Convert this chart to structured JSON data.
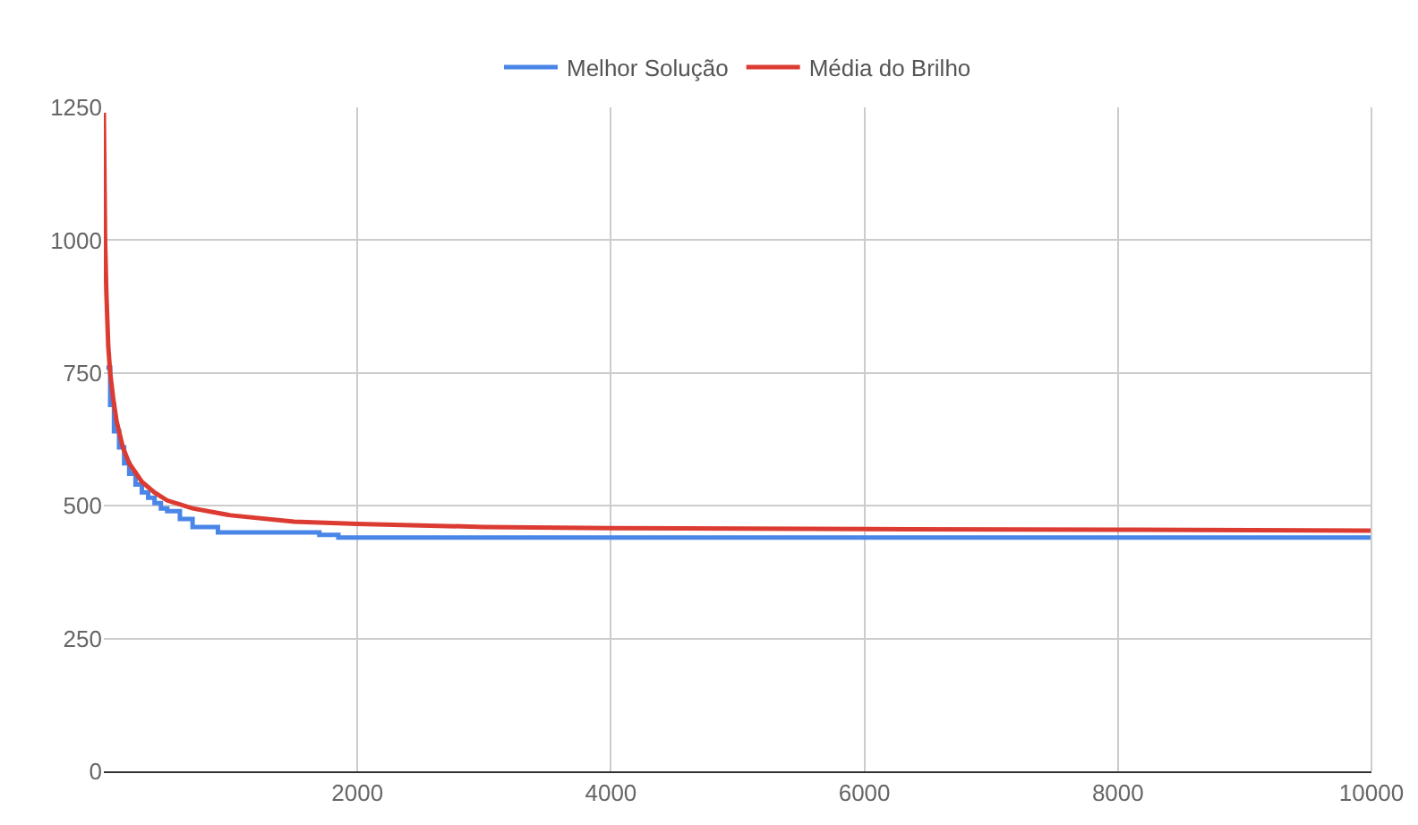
{
  "chart_data": {
    "type": "line",
    "xlim": [
      0,
      10000
    ],
    "xticks": [
      2000,
      4000,
      6000,
      8000,
      10000
    ],
    "ylim": [
      0,
      1250
    ],
    "yticks": [
      0,
      250,
      500,
      750,
      1000,
      1250
    ],
    "grid": true,
    "legend": "top",
    "series": [
      {
        "name": "Melhor Solução",
        "color": "#4a86e8",
        "type": "step",
        "x": [
          20,
          50,
          80,
          120,
          160,
          200,
          250,
          300,
          350,
          400,
          450,
          500,
          600,
          700,
          900,
          1700,
          1850,
          10000
        ],
        "values": [
          760,
          690,
          640,
          610,
          580,
          560,
          540,
          525,
          515,
          505,
          495,
          490,
          475,
          460,
          450,
          445,
          440,
          440
        ]
      },
      {
        "name": "Média do Brilho",
        "color": "#dc3b32",
        "x": [
          0,
          10,
          20,
          35,
          50,
          75,
          100,
          150,
          200,
          300,
          400,
          500,
          700,
          1000,
          1500,
          2000,
          3000,
          4000,
          6000,
          8000,
          10000
        ],
        "values": [
          1240,
          1000,
          900,
          800,
          750,
          700,
          660,
          610,
          580,
          545,
          525,
          510,
          495,
          482,
          470,
          466,
          460,
          458,
          456,
          455,
          453
        ]
      }
    ]
  }
}
